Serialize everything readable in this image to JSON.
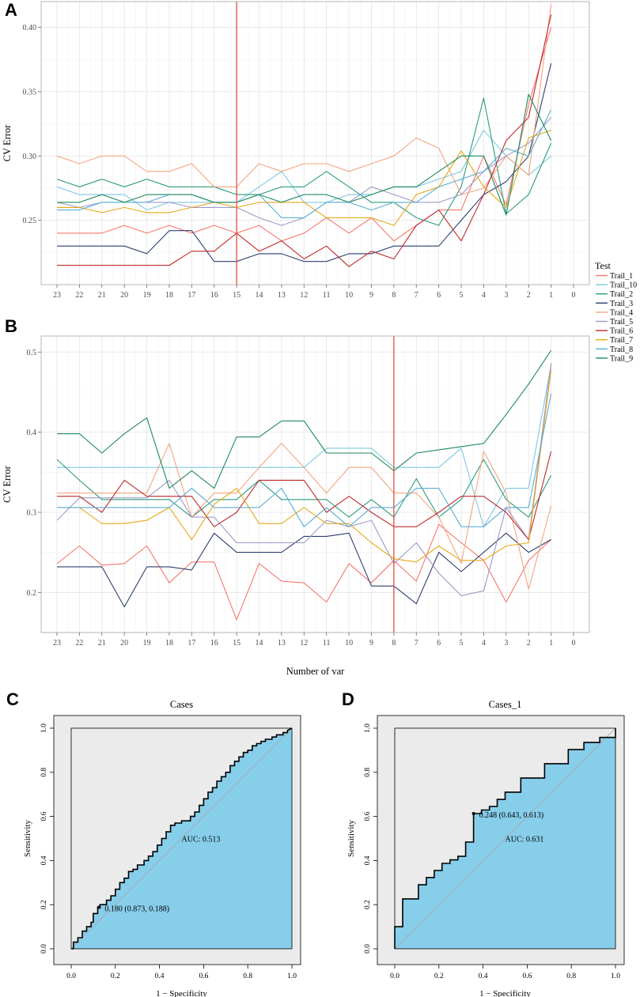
{
  "chart_data": [
    {
      "panel": "A",
      "type": "line",
      "ylabel": "CV Error",
      "xlabel": "",
      "x_ticks": [
        "23",
        "22",
        "21",
        "20",
        "19",
        "18",
        "17",
        "16",
        "15",
        "14",
        "13",
        "12",
        "11",
        "10",
        "9",
        "8",
        "7",
        "6",
        "5",
        "4",
        "3",
        "2",
        "1",
        "0"
      ],
      "ylim": [
        0.2,
        0.42
      ],
      "y_ticks": [
        "0.25",
        "0.30",
        "0.35",
        "0.40"
      ],
      "y_tick_values": [
        0.25,
        0.3,
        0.35,
        0.4
      ],
      "grid": true,
      "vline_at": "15",
      "vline_color": "#e64b3c",
      "legend": {
        "title": "Test",
        "position": "right"
      },
      "series": [
        {
          "name": "Trail_1",
          "color": "#f8766d",
          "values": [
            0.24,
            0.24,
            0.24,
            0.246,
            0.24,
            0.246,
            0.24,
            0.246,
            0.24,
            0.246,
            0.234,
            0.24,
            0.252,
            0.24,
            0.252,
            0.234,
            0.246,
            0.258,
            0.258,
            0.3,
            0.262,
            0.34,
            0.4
          ]
        },
        {
          "name": "Trail_10",
          "color": "#7ec8e3",
          "values": [
            0.276,
            0.27,
            0.27,
            0.27,
            0.258,
            0.264,
            0.264,
            0.264,
            0.264,
            0.276,
            0.288,
            0.264,
            0.264,
            0.27,
            0.27,
            0.276,
            0.276,
            0.282,
            0.288,
            0.32,
            0.3,
            0.285,
            0.3
          ]
        },
        {
          "name": "Trail_2",
          "color": "#2d9b7e",
          "values": [
            0.282,
            0.276,
            0.282,
            0.276,
            0.282,
            0.276,
            0.276,
            0.276,
            0.27,
            0.27,
            0.276,
            0.276,
            0.288,
            0.276,
            0.264,
            0.264,
            0.252,
            0.246,
            0.276,
            0.345,
            0.255,
            0.27,
            0.31
          ]
        },
        {
          "name": "Trail_3",
          "color": "#2e3f6e",
          "values": [
            0.23,
            0.23,
            0.23,
            0.23,
            0.224,
            0.242,
            0.242,
            0.218,
            0.218,
            0.224,
            0.224,
            0.218,
            0.218,
            0.224,
            0.224,
            0.23,
            0.23,
            0.23,
            0.25,
            0.27,
            0.28,
            0.3,
            0.372
          ]
        },
        {
          "name": "Trail_4",
          "color": "#f4a582",
          "values": [
            0.3,
            0.294,
            0.3,
            0.3,
            0.288,
            0.288,
            0.294,
            0.276,
            0.276,
            0.294,
            0.288,
            0.294,
            0.294,
            0.288,
            0.294,
            0.3,
            0.314,
            0.306,
            0.27,
            0.275,
            0.3,
            0.285,
            0.418
          ]
        },
        {
          "name": "Trail_5",
          "color": "#9e9ac8",
          "values": [
            0.264,
            0.26,
            0.264,
            0.264,
            0.264,
            0.264,
            0.26,
            0.26,
            0.26,
            0.252,
            0.246,
            0.252,
            0.264,
            0.264,
            0.276,
            0.27,
            0.264,
            0.264,
            0.27,
            0.288,
            0.3,
            0.31,
            0.33
          ]
        },
        {
          "name": "Trail_6",
          "color": "#c0292b",
          "values": [
            0.215,
            0.215,
            0.215,
            0.215,
            0.215,
            0.215,
            0.226,
            0.226,
            0.24,
            0.226,
            0.234,
            0.22,
            0.23,
            0.214,
            0.226,
            0.22,
            0.246,
            0.258,
            0.234,
            0.27,
            0.312,
            0.33,
            0.41
          ]
        },
        {
          "name": "Trail_7",
          "color": "#e6a817",
          "values": [
            0.26,
            0.26,
            0.256,
            0.26,
            0.256,
            0.256,
            0.26,
            0.264,
            0.26,
            0.264,
            0.264,
            0.264,
            0.252,
            0.252,
            0.252,
            0.246,
            0.27,
            0.276,
            0.304,
            0.276,
            0.26,
            0.314,
            0.32
          ]
        },
        {
          "name": "Trail_8",
          "color": "#5aaed6",
          "values": [
            0.258,
            0.258,
            0.264,
            0.264,
            0.264,
            0.27,
            0.27,
            0.264,
            0.264,
            0.27,
            0.252,
            0.252,
            0.264,
            0.264,
            0.258,
            0.264,
            0.264,
            0.276,
            0.282,
            0.288,
            0.306,
            0.3,
            0.336
          ]
        },
        {
          "name": "Trail_9",
          "color": "#1f8a5e",
          "values": [
            0.264,
            0.264,
            0.27,
            0.264,
            0.27,
            0.27,
            0.27,
            0.264,
            0.264,
            0.27,
            0.264,
            0.27,
            0.27,
            0.264,
            0.27,
            0.276,
            0.276,
            0.288,
            0.3,
            0.3,
            0.254,
            0.348,
            0.312
          ]
        }
      ]
    },
    {
      "panel": "B",
      "type": "line",
      "ylabel": "CV Error",
      "xlabel": "Number of var",
      "x_ticks": [
        "23",
        "22",
        "21",
        "20",
        "19",
        "18",
        "17",
        "16",
        "15",
        "14",
        "13",
        "12",
        "11",
        "10",
        "9",
        "8",
        "7",
        "6",
        "5",
        "4",
        "3",
        "2",
        "1",
        "0"
      ],
      "ylim": [
        0.15,
        0.52
      ],
      "y_ticks": [
        "0.2",
        "0.3",
        "0.4",
        "0.5"
      ],
      "y_tick_values": [
        0.2,
        0.3,
        0.4,
        0.5
      ],
      "grid": true,
      "vline_at": "8",
      "vline_color": "#e64b3c",
      "series": [
        {
          "name": "Trail_1",
          "color": "#f8766d",
          "values": [
            0.236,
            0.258,
            0.234,
            0.236,
            0.258,
            0.212,
            0.238,
            0.238,
            0.166,
            0.236,
            0.214,
            0.212,
            0.188,
            0.236,
            0.212,
            0.24,
            0.214,
            0.285,
            0.262,
            0.24,
            0.188,
            0.24,
            0.266
          ]
        },
        {
          "name": "Trail_10",
          "color": "#7ec8e3",
          "values": [
            0.356,
            0.356,
            0.356,
            0.356,
            0.356,
            0.356,
            0.356,
            0.356,
            0.356,
            0.356,
            0.356,
            0.356,
            0.38,
            0.38,
            0.38,
            0.356,
            0.356,
            0.356,
            0.38,
            0.282,
            0.33,
            0.33,
            0.484
          ]
        },
        {
          "name": "Trail_2",
          "color": "#2d9b7e",
          "values": [
            0.366,
            0.34,
            0.316,
            0.316,
            0.316,
            0.316,
            0.294,
            0.316,
            0.316,
            0.34,
            0.316,
            0.316,
            0.316,
            0.294,
            0.316,
            0.294,
            0.342,
            0.294,
            0.316,
            0.366,
            0.316,
            0.294,
            0.346
          ]
        },
        {
          "name": "Trail_3",
          "color": "#2e3f6e",
          "values": [
            0.232,
            0.232,
            0.232,
            0.182,
            0.232,
            0.232,
            0.228,
            0.274,
            0.25,
            0.25,
            0.25,
            0.27,
            0.27,
            0.274,
            0.208,
            0.208,
            0.186,
            0.25,
            0.226,
            0.25,
            0.274,
            0.25,
            0.266
          ]
        },
        {
          "name": "Trail_4",
          "color": "#f4a582",
          "values": [
            0.324,
            0.324,
            0.324,
            0.324,
            0.324,
            0.386,
            0.294,
            0.324,
            0.324,
            0.356,
            0.386,
            0.356,
            0.324,
            0.356,
            0.356,
            0.324,
            0.324,
            0.294,
            0.236,
            0.376,
            0.324,
            0.204,
            0.308
          ]
        },
        {
          "name": "Trail_5",
          "color": "#9e9ac8",
          "values": [
            0.29,
            0.318,
            0.318,
            0.318,
            0.318,
            0.34,
            0.294,
            0.294,
            0.262,
            0.262,
            0.262,
            0.262,
            0.29,
            0.282,
            0.29,
            0.236,
            0.262,
            0.224,
            0.196,
            0.202,
            0.306,
            0.266,
            0.486
          ]
        },
        {
          "name": "Trail_6",
          "color": "#c0292b",
          "values": [
            0.32,
            0.32,
            0.3,
            0.34,
            0.32,
            0.32,
            0.32,
            0.282,
            0.3,
            0.34,
            0.34,
            0.34,
            0.3,
            0.32,
            0.3,
            0.282,
            0.282,
            0.3,
            0.32,
            0.32,
            0.3,
            0.266,
            0.376
          ]
        },
        {
          "name": "Trail_7",
          "color": "#e6a817",
          "values": [
            0.306,
            0.306,
            0.286,
            0.286,
            0.29,
            0.306,
            0.266,
            0.31,
            0.33,
            0.286,
            0.286,
            0.306,
            0.286,
            0.286,
            0.262,
            0.242,
            0.238,
            0.258,
            0.24,
            0.24,
            0.258,
            0.262,
            0.478
          ]
        },
        {
          "name": "Trail_8",
          "color": "#5aaed6",
          "values": [
            0.306,
            0.306,
            0.306,
            0.306,
            0.306,
            0.306,
            0.33,
            0.306,
            0.306,
            0.306,
            0.33,
            0.282,
            0.306,
            0.282,
            0.306,
            0.306,
            0.33,
            0.33,
            0.282,
            0.282,
            0.306,
            0.306,
            0.448
          ]
        },
        {
          "name": "Trail_9",
          "color": "#1f8a5e",
          "values": [
            0.398,
            0.398,
            0.374,
            0.398,
            0.418,
            0.33,
            0.352,
            0.33,
            0.394,
            0.394,
            0.414,
            0.414,
            0.374,
            0.374,
            0.374,
            0.352,
            0.374,
            0.378,
            0.382,
            0.386,
            0.422,
            0.46,
            0.502
          ]
        }
      ]
    },
    {
      "panel": "C",
      "type": "line",
      "subtype": "roc",
      "title": "Cases",
      "xlabel": "1 − Specificity",
      "ylabel": "Sensitivity",
      "xlim": [
        0,
        1
      ],
      "ylim": [
        0,
        1
      ],
      "ticks": [
        "0.0",
        "0.2",
        "0.4",
        "0.6",
        "0.8",
        "1.0"
      ],
      "tick_values": [
        0,
        0.2,
        0.4,
        0.6,
        0.8,
        1.0
      ],
      "fill_color": "#87ceeb",
      "auc_label": "AUC: 0.513",
      "threshold_label": "0.180 (0.873, 0.188)",
      "threshold_point": [
        0.127,
        0.188
      ],
      "roc_x": [
        0,
        0.01,
        0.01,
        0.03,
        0.03,
        0.05,
        0.05,
        0.07,
        0.07,
        0.09,
        0.09,
        0.1,
        0.1,
        0.12,
        0.12,
        0.13,
        0.13,
        0.16,
        0.16,
        0.18,
        0.18,
        0.2,
        0.2,
        0.22,
        0.22,
        0.24,
        0.24,
        0.26,
        0.26,
        0.28,
        0.28,
        0.3,
        0.3,
        0.33,
        0.33,
        0.35,
        0.35,
        0.37,
        0.37,
        0.39,
        0.39,
        0.41,
        0.41,
        0.43,
        0.43,
        0.45,
        0.45,
        0.47,
        0.47,
        0.5,
        0.5,
        0.54,
        0.54,
        0.56,
        0.56,
        0.58,
        0.58,
        0.6,
        0.6,
        0.62,
        0.62,
        0.64,
        0.64,
        0.66,
        0.66,
        0.68,
        0.68,
        0.7,
        0.7,
        0.72,
        0.72,
        0.74,
        0.74,
        0.76,
        0.76,
        0.78,
        0.78,
        0.8,
        0.8,
        0.82,
        0.82,
        0.84,
        0.84,
        0.86,
        0.86,
        0.88,
        0.88,
        0.91,
        0.91,
        0.93,
        0.93,
        0.96,
        0.96,
        0.98,
        0.98,
        1.0
      ],
      "roc_y": [
        0,
        0,
        0.03,
        0.03,
        0.05,
        0.05,
        0.08,
        0.08,
        0.1,
        0.1,
        0.12,
        0.12,
        0.16,
        0.16,
        0.19,
        0.19,
        0.2,
        0.2,
        0.22,
        0.22,
        0.24,
        0.24,
        0.27,
        0.27,
        0.3,
        0.3,
        0.32,
        0.32,
        0.35,
        0.35,
        0.36,
        0.36,
        0.38,
        0.38,
        0.4,
        0.4,
        0.42,
        0.42,
        0.44,
        0.44,
        0.47,
        0.47,
        0.5,
        0.5,
        0.53,
        0.53,
        0.56,
        0.56,
        0.57,
        0.57,
        0.58,
        0.58,
        0.6,
        0.6,
        0.62,
        0.62,
        0.65,
        0.65,
        0.68,
        0.68,
        0.71,
        0.71,
        0.73,
        0.73,
        0.76,
        0.76,
        0.78,
        0.78,
        0.8,
        0.8,
        0.83,
        0.83,
        0.85,
        0.85,
        0.87,
        0.87,
        0.89,
        0.89,
        0.9,
        0.9,
        0.92,
        0.92,
        0.93,
        0.93,
        0.94,
        0.94,
        0.95,
        0.95,
        0.96,
        0.96,
        0.97,
        0.97,
        0.98,
        0.98,
        0.99,
        1.0
      ]
    },
    {
      "panel": "D",
      "type": "line",
      "subtype": "roc",
      "title": "Cases_1",
      "xlabel": "1 − Specificity",
      "ylabel": "Sensitivity",
      "xlim": [
        0,
        1
      ],
      "ylim": [
        0,
        1
      ],
      "ticks": [
        "0.0",
        "0.2",
        "0.4",
        "0.6",
        "0.8",
        "1.0"
      ],
      "tick_values": [
        0,
        0.2,
        0.4,
        0.6,
        0.8,
        1.0
      ],
      "fill_color": "#87ceeb",
      "auc_label": "AUC: 0.631",
      "threshold_label": "0.248 (0.643, 0.613)",
      "threshold_point": [
        0.357,
        0.613
      ],
      "roc_x": [
        0,
        0,
        0.036,
        0.036,
        0.107,
        0.107,
        0.143,
        0.143,
        0.179,
        0.179,
        0.214,
        0.214,
        0.25,
        0.25,
        0.286,
        0.286,
        0.321,
        0.321,
        0.357,
        0.357,
        0.393,
        0.393,
        0.429,
        0.429,
        0.464,
        0.464,
        0.5,
        0.5,
        0.571,
        0.571,
        0.679,
        0.679,
        0.786,
        0.786,
        0.857,
        0.857,
        0.929,
        0.929,
        1.0,
        1.0
      ],
      "roc_y": [
        0,
        0.1,
        0.1,
        0.226,
        0.226,
        0.29,
        0.29,
        0.323,
        0.323,
        0.355,
        0.355,
        0.387,
        0.387,
        0.403,
        0.403,
        0.419,
        0.419,
        0.484,
        0.484,
        0.613,
        0.613,
        0.629,
        0.629,
        0.645,
        0.645,
        0.677,
        0.677,
        0.71,
        0.71,
        0.774,
        0.774,
        0.839,
        0.839,
        0.903,
        0.903,
        0.935,
        0.935,
        0.958,
        0.958,
        1.0
      ]
    }
  ]
}
